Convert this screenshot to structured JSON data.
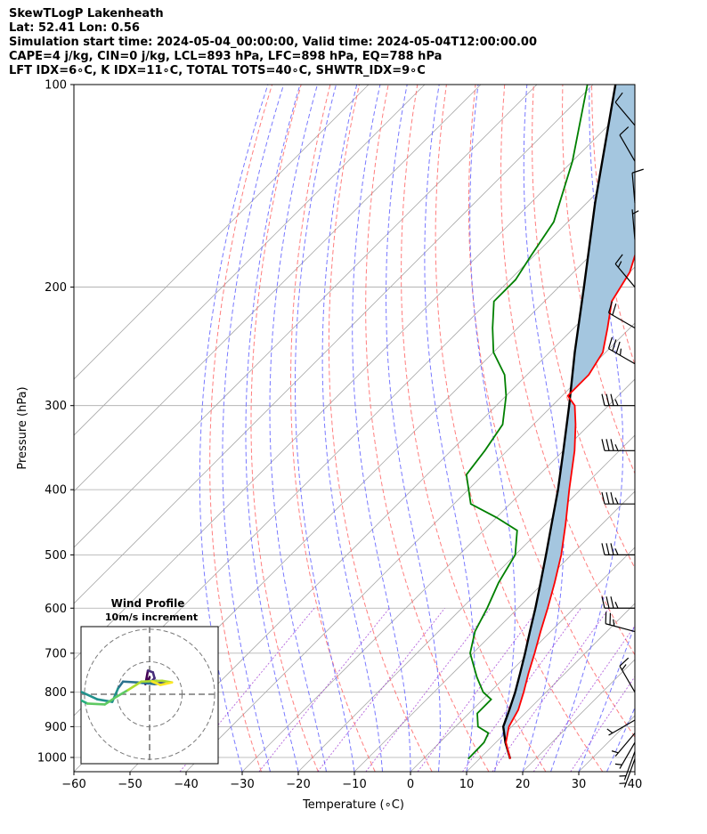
{
  "titles": [
    "SkewTLogP Lakenheath",
    "Lat: 52.41   Lon: 0.56",
    "Simulation start time: 2024-05-04_00:00:00, Valid time: 2024-05-04T12:00:00.00",
    "CAPE=4 j/kg, CIN=0 j/kg, LCL=893 hPa, LFC=898 hPa, EQ=788 hPa",
    "LFT IDX=6∘C, K IDX=11∘C, TOTAL TOTS=40∘C, SHWTR_IDX=9∘C"
  ],
  "chart_data": [
    {
      "type": "line",
      "subtype": "skew-t log-p diagram",
      "xlabel": "Temperature (∘C)",
      "ylabel": "Pressure (hPa)",
      "x_ticks": [
        -60,
        -50,
        -40,
        -30,
        -20,
        -10,
        0,
        10,
        20,
        30,
        40
      ],
      "y_ticks": [
        100,
        200,
        300,
        400,
        500,
        600,
        700,
        800,
        900,
        1000
      ],
      "xlim": [
        -60,
        40
      ],
      "ylim": [
        1050,
        100
      ],
      "y_scale": "log",
      "skew": "45 degrees",
      "grid": true,
      "colors": {
        "temperature": "#ff0000",
        "dewpoint": "#008000",
        "parcel": "#000000",
        "cape_fill": "#a4c6df",
        "dry_adiabats": "#ff7070",
        "moist_adiabats": "#6a6aff",
        "mixing_ratio": "#9b30d0",
        "isotherms": "#aaaaaa"
      },
      "series": [
        {
          "role": "temperature",
          "points": [
            [
              1005,
              15.5
            ],
            [
              950,
              11.8
            ],
            [
              900,
              9.5
            ],
            [
              850,
              8.2
            ],
            [
              800,
              6.0
            ],
            [
              750,
              3.5
            ],
            [
              700,
              1.0
            ],
            [
              650,
              -1.8
            ],
            [
              600,
              -4.7
            ],
            [
              550,
              -8.0
            ],
            [
              500,
              -11.8
            ],
            [
              450,
              -16.5
            ],
            [
              400,
              -22.0
            ],
            [
              350,
              -28.0
            ],
            [
              320,
              -32.5
            ],
            [
              300,
              -36.0
            ],
            [
              290,
              -39.0
            ],
            [
              270,
              -39.0
            ],
            [
              250,
              -40.5
            ],
            [
              230,
              -44.0
            ],
            [
              210,
              -48.0
            ],
            [
              190,
              -50.0
            ],
            [
              170,
              -54.0
            ],
            [
              150,
              -55.5
            ],
            [
              130,
              -57.5
            ],
            [
              115,
              -59.0
            ],
            [
              100,
              -61.0
            ]
          ]
        },
        {
          "role": "dewpoint",
          "points": [
            [
              1005,
              8.0
            ],
            [
              950,
              7.9
            ],
            [
              920,
              7.0
            ],
            [
              900,
              4.0
            ],
            [
              860,
              1.5
            ],
            [
              820,
              1.5
            ],
            [
              800,
              -1.2
            ],
            [
              760,
              -5.0
            ],
            [
              700,
              -10.5
            ],
            [
              650,
              -13.5
            ],
            [
              600,
              -15.5
            ],
            [
              550,
              -18.0
            ],
            [
              500,
              -20.0
            ],
            [
              460,
              -24.0
            ],
            [
              440,
              -30.0
            ],
            [
              420,
              -37.0
            ],
            [
              380,
              -43.0
            ],
            [
              350,
              -44.0
            ],
            [
              320,
              -45.5
            ],
            [
              290,
              -50.0
            ],
            [
              270,
              -54.0
            ],
            [
              250,
              -60.0
            ],
            [
              230,
              -64.5
            ],
            [
              210,
              -69.0
            ],
            [
              195,
              -69.0
            ],
            [
              180,
              -70.5
            ],
            [
              160,
              -72.5
            ],
            [
              130,
              -80.0
            ],
            [
              100,
              -91.0
            ]
          ]
        },
        {
          "role": "parcel",
          "points": [
            [
              1005,
              15.5
            ],
            [
              950,
              11.7
            ],
            [
              900,
              8.5
            ],
            [
              850,
              6.6
            ],
            [
              800,
              4.5
            ],
            [
              750,
              2.0
            ],
            [
              700,
              -0.7
            ],
            [
              650,
              -3.7
            ],
            [
              600,
              -6.9
            ],
            [
              550,
              -10.5
            ],
            [
              500,
              -14.5
            ],
            [
              450,
              -19.0
            ],
            [
              400,
              -24.0
            ],
            [
              350,
              -30.0
            ],
            [
              300,
              -37.0
            ],
            [
              250,
              -45.5
            ],
            [
              200,
              -55.5
            ],
            [
              150,
              -68.5
            ],
            [
              100,
              -86.0
            ]
          ]
        }
      ],
      "wind_barbs": [
        {
          "p": 1005,
          "speed_kt": 5,
          "dir": 200
        },
        {
          "p": 980,
          "speed_kt": 5,
          "dir": 200
        },
        {
          "p": 950,
          "speed_kt": 5,
          "dir": 210
        },
        {
          "p": 920,
          "speed_kt": 5,
          "dir": 220
        },
        {
          "p": 880,
          "speed_kt": 5,
          "dir": 240
        },
        {
          "p": 800,
          "speed_kt": 15,
          "dir": 330
        },
        {
          "p": 650,
          "speed_kt": 25,
          "dir": 285
        },
        {
          "p": 600,
          "speed_kt": 35,
          "dir": 270
        },
        {
          "p": 500,
          "speed_kt": 35,
          "dir": 270
        },
        {
          "p": 420,
          "speed_kt": 35,
          "dir": 270
        },
        {
          "p": 350,
          "speed_kt": 35,
          "dir": 270
        },
        {
          "p": 300,
          "speed_kt": 35,
          "dir": 270
        },
        {
          "p": 260,
          "speed_kt": 35,
          "dir": 300
        },
        {
          "p": 230,
          "speed_kt": 20,
          "dir": 300
        },
        {
          "p": 200,
          "speed_kt": 15,
          "dir": 320
        },
        {
          "p": 170,
          "speed_kt": 5,
          "dir": 355
        },
        {
          "p": 150,
          "speed_kt": 10,
          "dir": 355
        },
        {
          "p": 130,
          "speed_kt": 10,
          "dir": 330
        },
        {
          "p": 115,
          "speed_kt": 10,
          "dir": 320
        }
      ]
    },
    {
      "type": "line",
      "subtype": "hodograph",
      "title": "Wind Profile",
      "subtitle": "10m/s increment",
      "ring_step": "10m/s",
      "colormap": "viridis",
      "points": [
        [
          0.0,
          2.0
        ],
        [
          -0.5,
          1.2
        ],
        [
          -0.2,
          2.8
        ],
        [
          0.4,
          2.6
        ],
        [
          0.6,
          1.9
        ],
        [
          0.1,
          1.4
        ],
        [
          0.8,
          1.6
        ],
        [
          1.8,
          1.3
        ],
        [
          0.6,
          1.2
        ],
        [
          -1.5,
          1.4
        ],
        [
          -3.2,
          1.5
        ],
        [
          -3.8,
          0.7
        ],
        [
          -4.5,
          -0.9
        ],
        [
          -6.3,
          -0.6
        ],
        [
          -8.5,
          0.4
        ],
        [
          -9.4,
          1.3
        ],
        [
          -9.6,
          0.9
        ],
        [
          -8.7,
          -0.5
        ],
        [
          -7.5,
          -1.1
        ],
        [
          -5.4,
          -1.2
        ],
        [
          -4.0,
          -0.3
        ],
        [
          -2.6,
          0.5
        ],
        [
          -1.0,
          1.5
        ],
        [
          1.5,
          1.6
        ],
        [
          2.7,
          1.4
        ],
        [
          1.3,
          1.1
        ],
        [
          0.3,
          1.5
        ]
      ]
    }
  ]
}
